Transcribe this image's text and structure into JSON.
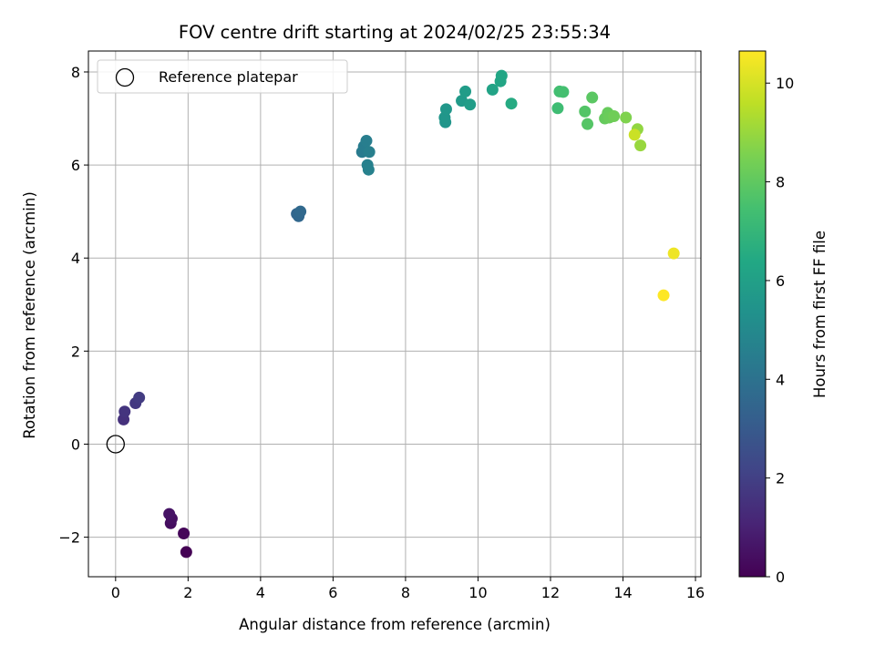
{
  "chart_data": {
    "type": "scatter",
    "title": "FOV centre drift starting at 2024/02/25 23:55:34",
    "xlabel": "Angular distance from reference (arcmin)",
    "ylabel": "Rotation from reference (arcmin)",
    "xlim": [
      -0.75,
      16.15
    ],
    "ylim": [
      -2.85,
      8.45
    ],
    "xticks": [
      0,
      2,
      4,
      6,
      8,
      10,
      12,
      14,
      16
    ],
    "yticks": [
      -2,
      0,
      2,
      4,
      6,
      8
    ],
    "grid": true,
    "legend": {
      "placement": "top-left",
      "label": "Reference platepar"
    },
    "reference_point": {
      "x": 0,
      "y": 0
    },
    "colorbar": {
      "label": "Hours from first FF file",
      "colormap": "viridis",
      "range": [
        0,
        10.65
      ],
      "ticks": [
        0,
        2,
        4,
        6,
        8,
        10
      ]
    },
    "points": [
      {
        "x": 1.95,
        "y": -2.32,
        "c": 0.0
      },
      {
        "x": 1.88,
        "y": -1.92,
        "c": 0.15
      },
      {
        "x": 1.52,
        "y": -1.7,
        "c": 0.35
      },
      {
        "x": 1.55,
        "y": -1.6,
        "c": 0.45
      },
      {
        "x": 1.48,
        "y": -1.5,
        "c": 0.55
      },
      {
        "x": 0.22,
        "y": 0.53,
        "c": 1.5
      },
      {
        "x": 0.25,
        "y": 0.7,
        "c": 1.6
      },
      {
        "x": 0.55,
        "y": 0.88,
        "c": 1.75
      },
      {
        "x": 0.65,
        "y": 1.0,
        "c": 1.85
      },
      {
        "x": 5.0,
        "y": 4.95,
        "c": 3.5
      },
      {
        "x": 5.05,
        "y": 4.9,
        "c": 3.55
      },
      {
        "x": 5.1,
        "y": 5.0,
        "c": 3.6
      },
      {
        "x": 6.8,
        "y": 6.28,
        "c": 4.4
      },
      {
        "x": 6.85,
        "y": 6.4,
        "c": 4.45
      },
      {
        "x": 6.92,
        "y": 6.52,
        "c": 4.5
      },
      {
        "x": 7.0,
        "y": 6.28,
        "c": 4.55
      },
      {
        "x": 6.95,
        "y": 6.0,
        "c": 4.6
      },
      {
        "x": 6.98,
        "y": 5.9,
        "c": 4.65
      },
      {
        "x": 9.1,
        "y": 6.92,
        "c": 5.5
      },
      {
        "x": 9.08,
        "y": 7.02,
        "c": 5.55
      },
      {
        "x": 9.12,
        "y": 7.2,
        "c": 5.6
      },
      {
        "x": 9.55,
        "y": 7.38,
        "c": 5.75
      },
      {
        "x": 9.65,
        "y": 7.58,
        "c": 5.85
      },
      {
        "x": 9.78,
        "y": 7.3,
        "c": 5.9
      },
      {
        "x": 10.4,
        "y": 7.62,
        "c": 6.15
      },
      {
        "x": 10.62,
        "y": 7.8,
        "c": 6.25
      },
      {
        "x": 10.65,
        "y": 7.92,
        "c": 6.3
      },
      {
        "x": 10.92,
        "y": 7.32,
        "c": 6.5
      },
      {
        "x": 12.2,
        "y": 7.22,
        "c": 7.3
      },
      {
        "x": 12.25,
        "y": 7.58,
        "c": 7.4
      },
      {
        "x": 12.35,
        "y": 7.57,
        "c": 7.45
      },
      {
        "x": 12.95,
        "y": 7.15,
        "c": 7.75
      },
      {
        "x": 13.02,
        "y": 6.88,
        "c": 7.8
      },
      {
        "x": 13.15,
        "y": 7.45,
        "c": 7.9
      },
      {
        "x": 13.5,
        "y": 7.0,
        "c": 8.1
      },
      {
        "x": 13.58,
        "y": 7.12,
        "c": 8.15
      },
      {
        "x": 13.62,
        "y": 7.02,
        "c": 8.2
      },
      {
        "x": 13.75,
        "y": 7.05,
        "c": 8.3
      },
      {
        "x": 14.08,
        "y": 7.02,
        "c": 8.6
      },
      {
        "x": 14.4,
        "y": 6.77,
        "c": 8.9
      },
      {
        "x": 14.48,
        "y": 6.42,
        "c": 9.0
      },
      {
        "x": 14.32,
        "y": 6.65,
        "c": 9.8
      },
      {
        "x": 15.4,
        "y": 4.1,
        "c": 10.4
      },
      {
        "x": 15.12,
        "y": 3.2,
        "c": 10.65
      }
    ]
  }
}
